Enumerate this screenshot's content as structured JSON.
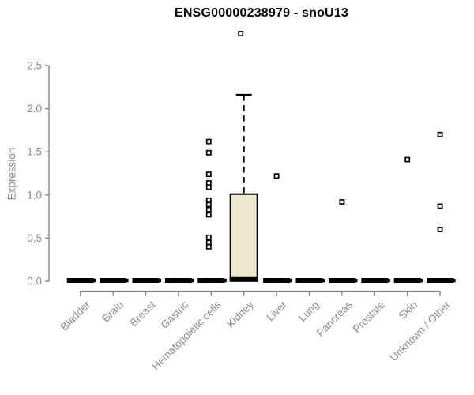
{
  "title": "ENSG00000238979 - snoU13",
  "chart_data": {
    "type": "boxplot",
    "title": "ENSG00000238979 - snoU13",
    "ylabel": "Expression",
    "ylim": [
      0.0,
      2.5
    ],
    "y_ticks": [
      "0.0",
      "0.5",
      "1.0",
      "1.5",
      "2.0",
      "2.5"
    ],
    "y_tick_values": [
      0.0,
      0.5,
      1.0,
      1.5,
      2.0,
      2.5
    ],
    "grid": "off",
    "box_fill": "#ece7cd",
    "box_stroke": "#000000",
    "axis_color": "#7f7f7f",
    "label_color": "#8b8b8b",
    "categories": [
      "Bladder",
      "Brain",
      "Breast",
      "Gastric",
      "Hematopoietic cells",
      "Kidney",
      "Liver",
      "Lung",
      "Pancreas",
      "Prostate",
      "Skin",
      "Unknown / Other"
    ],
    "series": [
      {
        "label": "Bladder",
        "median": 0.01,
        "q1": 0,
        "q3": 0.02,
        "whisker_low": 0,
        "whisker_high": 0.02,
        "outliers": [],
        "outlier_dx": 0
      },
      {
        "label": "Brain",
        "median": 0.01,
        "q1": 0,
        "q3": 0.02,
        "whisker_low": 0,
        "whisker_high": 0.02,
        "outliers": [],
        "outlier_dx": 0
      },
      {
        "label": "Breast",
        "median": 0.01,
        "q1": 0,
        "q3": 0.02,
        "whisker_low": 0,
        "whisker_high": 0.02,
        "outliers": [],
        "outlier_dx": 0
      },
      {
        "label": "Gastric",
        "median": 0.01,
        "q1": 0,
        "q3": 0.02,
        "whisker_low": 0,
        "whisker_high": 0.02,
        "outliers": [],
        "outlier_dx": 0
      },
      {
        "label": "Hematopoietic cells",
        "median": 0.01,
        "q1": 0,
        "q3": 0.02,
        "whisker_low": 0,
        "whisker_high": 0.02,
        "outliers": [
          1.62,
          1.49,
          1.24,
          1.14,
          1.09,
          0.94,
          0.89,
          0.83,
          0.77,
          0.51,
          0.45,
          0.4
        ],
        "outlier_dx": -3
      },
      {
        "label": "Kidney",
        "median": 0.02,
        "q1": 0.02,
        "q3": 1.01,
        "whisker_low": 0.02,
        "whisker_high": 2.16,
        "outliers": [
          2.87
        ],
        "outlier_dx": -4
      },
      {
        "label": "Liver",
        "median": 0.01,
        "q1": 0,
        "q3": 0.02,
        "whisker_low": 0,
        "whisker_high": 0.02,
        "outliers": [
          1.22
        ],
        "outlier_dx": 0
      },
      {
        "label": "Lung",
        "median": 0.01,
        "q1": 0,
        "q3": 0.02,
        "whisker_low": 0,
        "whisker_high": 0.02,
        "outliers": [],
        "outlier_dx": 0
      },
      {
        "label": "Pancreas",
        "median": 0.01,
        "q1": 0,
        "q3": 0.02,
        "whisker_low": 0,
        "whisker_high": 0.02,
        "outliers": [
          0.92
        ],
        "outlier_dx": 0
      },
      {
        "label": "Prostate",
        "median": 0.01,
        "q1": 0,
        "q3": 0.02,
        "whisker_low": 0,
        "whisker_high": 0.02,
        "outliers": [],
        "outlier_dx": 0
      },
      {
        "label": "Skin",
        "median": 0.01,
        "q1": 0,
        "q3": 0.02,
        "whisker_low": 0,
        "whisker_high": 0.02,
        "outliers": [
          1.41
        ],
        "outlier_dx": 0
      },
      {
        "label": "Unknown / Other",
        "median": 0.01,
        "q1": 0,
        "q3": 0.02,
        "whisker_low": 0,
        "whisker_high": 0.02,
        "outliers": [
          1.7,
          0.87,
          0.6
        ],
        "outlier_dx": 0
      }
    ]
  }
}
